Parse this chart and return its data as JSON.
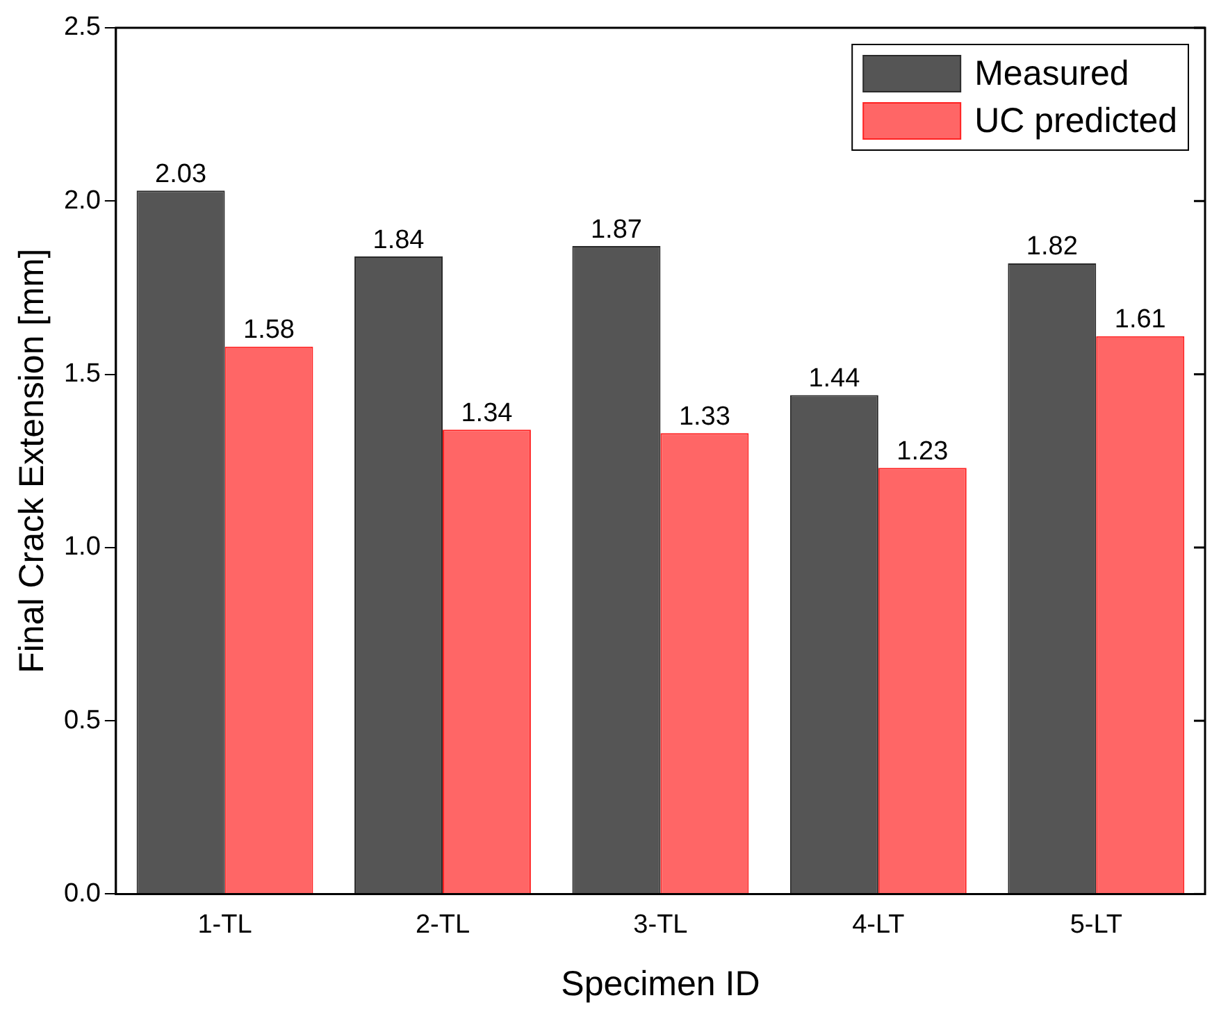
{
  "chart_data": {
    "type": "bar",
    "xlabel": "Specimen ID",
    "ylabel": "Final Crack Extension [mm]",
    "categories": [
      "1-TL",
      "2-TL",
      "3-TL",
      "4-LT",
      "5-LT"
    ],
    "series": [
      {
        "name": "Measured",
        "color": "#555555",
        "values": [
          2.03,
          1.84,
          1.87,
          1.44,
          1.82
        ]
      },
      {
        "name": "UC predicted",
        "color": "#ff6666",
        "values": [
          1.58,
          1.34,
          1.33,
          1.23,
          1.61
        ]
      }
    ],
    "ylim": [
      0,
      2.5
    ],
    "yticks": [
      {
        "value": 0,
        "label": "0.0"
      },
      {
        "value": 0.5,
        "label": "0.5"
      },
      {
        "value": 1,
        "label": "1.0"
      },
      {
        "value": 1.5,
        "label": "1.5"
      },
      {
        "value": 2,
        "label": "2.0"
      },
      {
        "value": 2.5,
        "label": "2.5"
      }
    ],
    "grid": false,
    "legend": "top right",
    "data_labels": true
  }
}
